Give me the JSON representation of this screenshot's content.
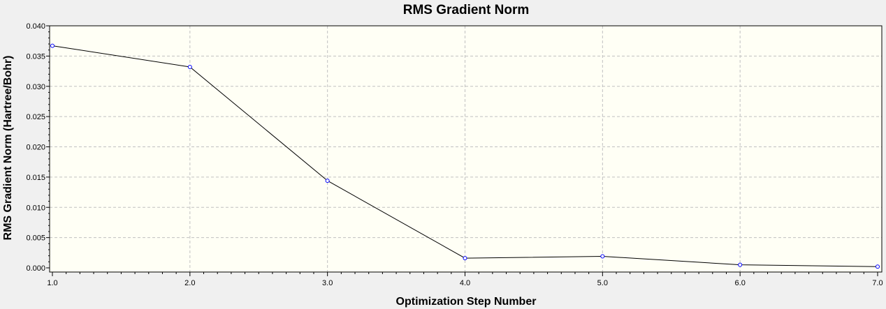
{
  "chart_data": {
    "type": "line",
    "title": "RMS Gradient Norm",
    "xlabel": "Optimization Step Number",
    "ylabel": "RMS Gradient Norm (Hartree/Bohr)",
    "x": [
      1,
      2,
      3,
      4,
      5,
      6,
      7
    ],
    "series": [
      {
        "values": [
          0.0367,
          0.0332,
          0.0144,
          0.0016,
          0.0019,
          0.0005,
          0.0002
        ]
      }
    ],
    "xlim": [
      1,
      7
    ],
    "ylim": [
      0,
      0.04
    ],
    "xticks": [
      "1.0",
      "2.0",
      "3.0",
      "4.0",
      "5.0",
      "6.0",
      "7.0"
    ],
    "yticks": [
      "0.000",
      "0.005",
      "0.010",
      "0.015",
      "0.020",
      "0.025",
      "0.030",
      "0.035",
      "0.040"
    ],
    "grid": true,
    "colors": {
      "background": "#f0f0f0",
      "plot_area": "#fffff5",
      "grid": "#c0c0c0",
      "line": "#000000",
      "marker": "#0000ff"
    }
  }
}
